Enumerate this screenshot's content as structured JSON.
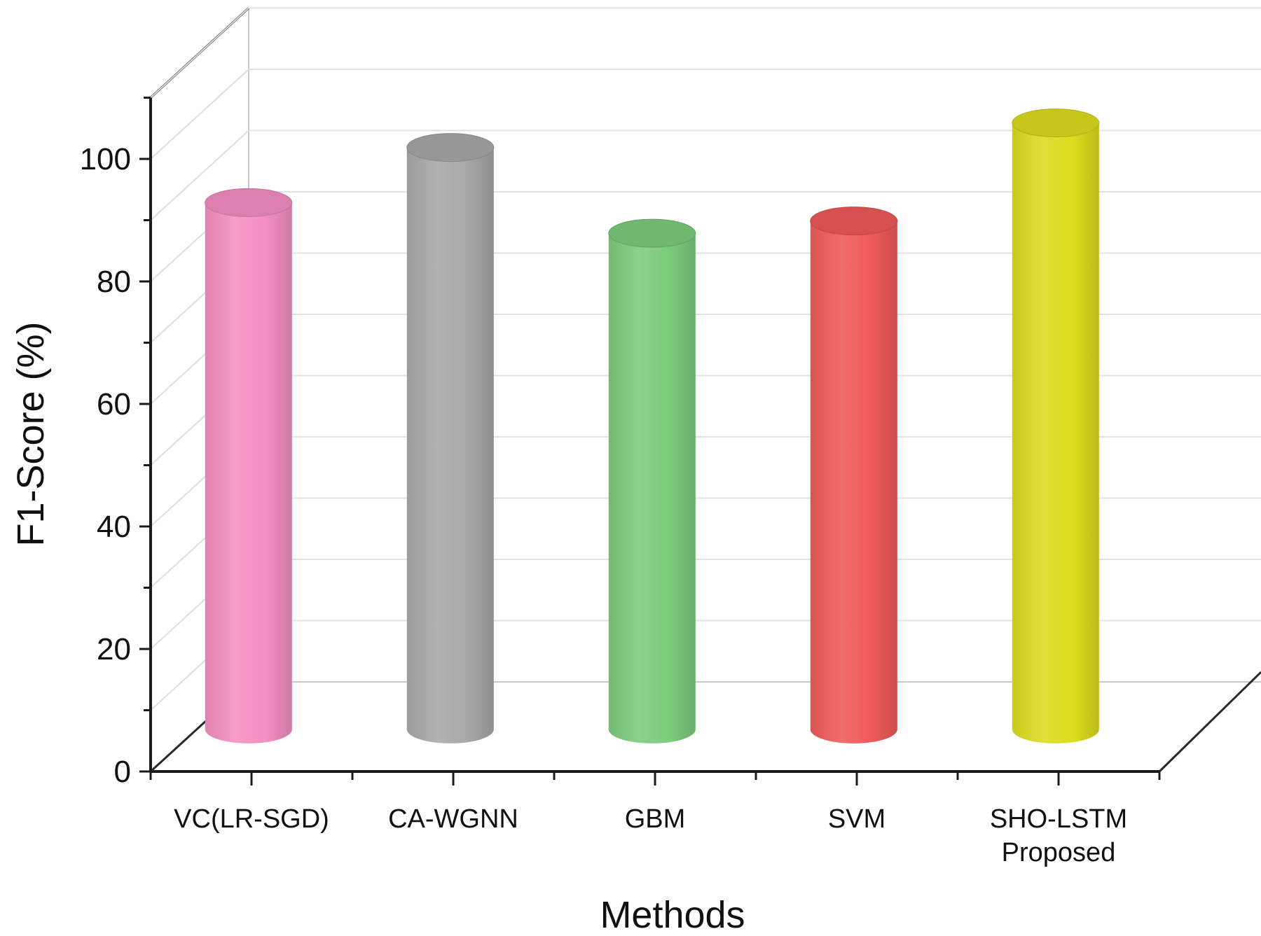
{
  "chart_data": {
    "type": "bar",
    "style": "3d-cylinder",
    "categories": [
      "VC(LR-SGD)",
      "CA-WGNN",
      "GBM",
      "SVM",
      "SHO-LSTM"
    ],
    "category_sublabels": [
      "",
      "",
      "",
      "",
      "Proposed"
    ],
    "values": [
      86,
      95,
      81,
      83,
      99
    ],
    "colors": [
      "#f48fc2",
      "#a8a8a8",
      "#7ccb7c",
      "#ef5a5a",
      "#dcdc1e"
    ],
    "xlabel": "Methods",
    "ylabel": "F1-Score (%)",
    "ylim": [
      0,
      110
    ],
    "yticks": [
      "0",
      "20",
      "40",
      "60",
      "80",
      "100"
    ],
    "grid": true,
    "legend": "none"
  }
}
